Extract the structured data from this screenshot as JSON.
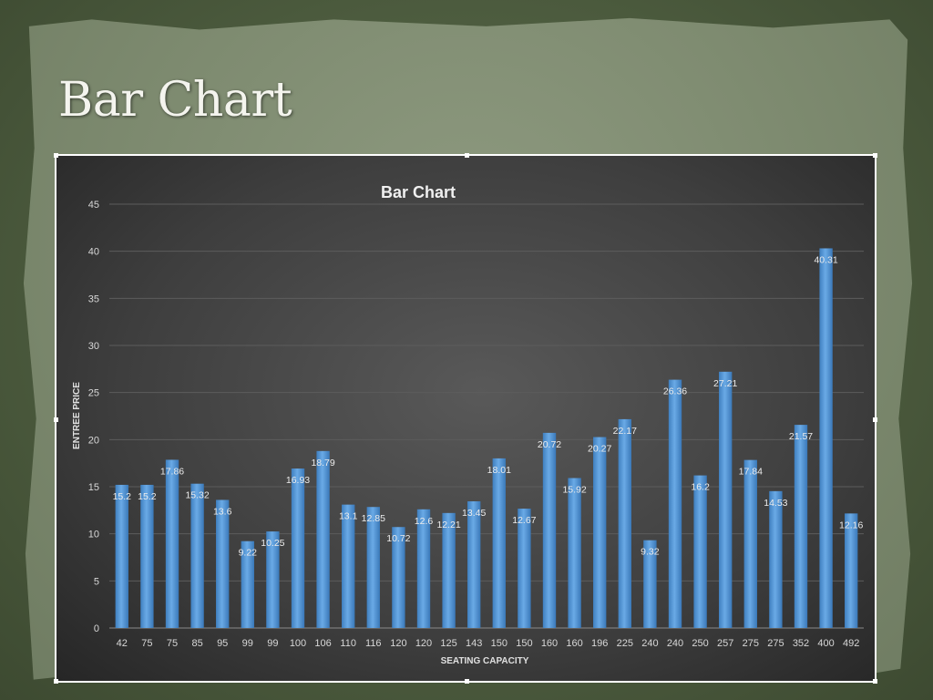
{
  "slide": {
    "title": "Bar Chart"
  },
  "chart_data": {
    "type": "bar",
    "title": "Bar Chart",
    "xlabel": "SEATING CAPACITY",
    "ylabel": "ENTREE PRICE",
    "ylim": [
      0,
      45
    ],
    "yticks": [
      0,
      5,
      10,
      15,
      20,
      25,
      30,
      35,
      40,
      45
    ],
    "grid": true,
    "bar_color": "#5b9bd5",
    "categories": [
      "42",
      "75",
      "75",
      "85",
      "95",
      "99",
      "99",
      "100",
      "106",
      "110",
      "116",
      "120",
      "120",
      "125",
      "143",
      "150",
      "150",
      "160",
      "160",
      "196",
      "225",
      "240",
      "240",
      "250",
      "257",
      "275",
      "275",
      "352",
      "400",
      "492"
    ],
    "values": [
      15.2,
      15.2,
      17.86,
      15.32,
      13.6,
      9.22,
      10.25,
      16.93,
      18.79,
      13.1,
      12.85,
      10.72,
      12.6,
      12.21,
      13.45,
      18.01,
      12.67,
      20.72,
      15.92,
      20.27,
      22.17,
      9.32,
      26.36,
      16.2,
      27.21,
      17.84,
      14.53,
      21.57,
      40.31,
      12.16
    ],
    "data_labels": [
      "15.2",
      "15.2",
      "17.86",
      "15.32",
      "13.6",
      "9.22",
      "10.25",
      "16.93",
      "18.79",
      "13.1",
      "12.85",
      "10.72",
      "12.6",
      "12.21",
      "13.45",
      "18.01",
      "12.67",
      "20.72",
      "15.92",
      "20.27",
      "22.17",
      "9.32",
      "26.36",
      "16.2",
      "27.21",
      "17.84",
      "14.53",
      "21.57",
      "40.31",
      "12.16"
    ]
  }
}
